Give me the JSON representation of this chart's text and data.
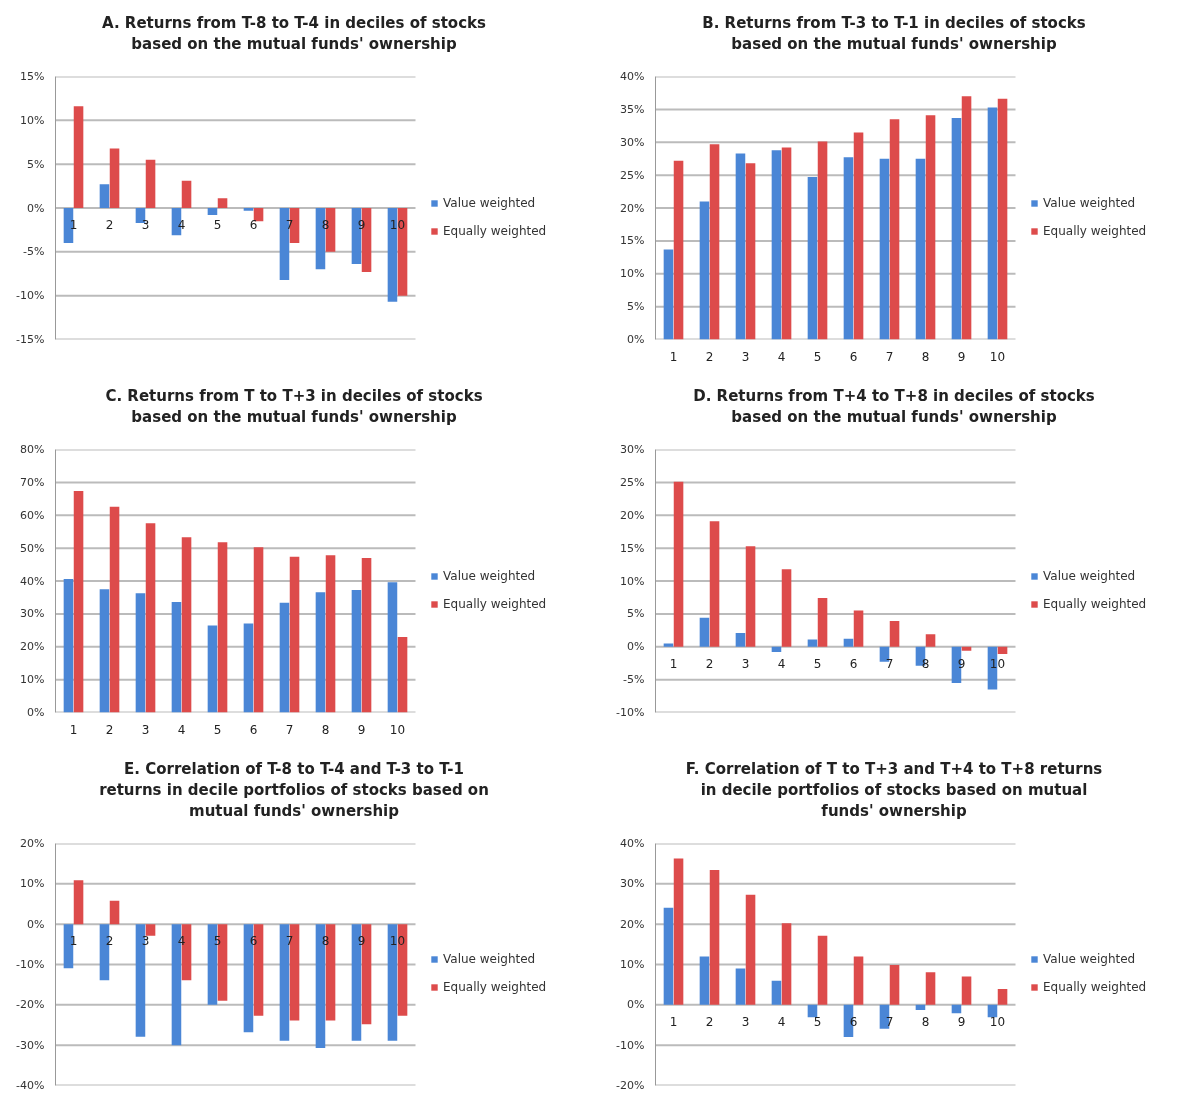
{
  "chart_data": [
    {
      "type": "bar",
      "title": "A. Returns from T-8 to T-4 in deciles of stocks\nbased on the mutual funds' ownership",
      "categories": [
        "1",
        "2",
        "3",
        "4",
        "5",
        "6",
        "7",
        "8",
        "9",
        "10"
      ],
      "series": [
        {
          "name": "Value weighted",
          "color": "#4a86d6",
          "values": [
            -4.0,
            2.7,
            -1.7,
            -3.1,
            -0.8,
            -0.3,
            -8.2,
            -7.0,
            -6.4,
            -10.7
          ]
        },
        {
          "name": "Equally weighted",
          "color": "#dd4b4b",
          "values": [
            11.6,
            6.8,
            5.5,
            3.1,
            1.1,
            -1.5,
            -4.0,
            -5.0,
            -7.3,
            -10.0
          ]
        }
      ],
      "ylim": [
        -15,
        15
      ],
      "yticks": [
        {
          "value": -15,
          "label": "-15%"
        },
        {
          "value": -10,
          "label": "-10%"
        },
        {
          "value": -5,
          "label": "-5%"
        },
        {
          "value": 0,
          "label": "0%"
        },
        {
          "value": 5,
          "label": "5%"
        },
        {
          "value": 10,
          "label": "10%"
        },
        {
          "value": 15,
          "label": "15%"
        }
      ],
      "grid": "y",
      "legend": "right"
    },
    {
      "type": "bar",
      "title": "B. Returns from T-3 to T-1 in deciles of stocks\nbased on the mutual funds' ownership",
      "categories": [
        "1",
        "2",
        "3",
        "4",
        "5",
        "6",
        "7",
        "8",
        "9",
        "10"
      ],
      "series": [
        {
          "name": "Value weighted",
          "color": "#4a86d6",
          "values": [
            13.7,
            21.0,
            28.3,
            28.8,
            24.7,
            27.7,
            27.5,
            27.5,
            33.7,
            35.3
          ]
        },
        {
          "name": "Equally weighted",
          "color": "#dd4b4b",
          "values": [
            27.2,
            29.7,
            26.8,
            29.2,
            30.1,
            31.5,
            33.5,
            34.1,
            37.0,
            36.6
          ]
        }
      ],
      "ylim": [
        0,
        40
      ],
      "yticks": [
        {
          "value": 0,
          "label": "0%"
        },
        {
          "value": 5,
          "label": "5%"
        },
        {
          "value": 10,
          "label": "10%"
        },
        {
          "value": 15,
          "label": "15%"
        },
        {
          "value": 20,
          "label": "20%"
        },
        {
          "value": 25,
          "label": "25%"
        },
        {
          "value": 30,
          "label": "30%"
        },
        {
          "value": 35,
          "label": "35%"
        },
        {
          "value": 40,
          "label": "40%"
        }
      ],
      "grid": "y",
      "legend": "right"
    },
    {
      "type": "bar",
      "title": "C. Returns from T to T+3 in deciles of stocks\nbased on the mutual funds' ownership",
      "categories": [
        "1",
        "2",
        "3",
        "4",
        "5",
        "6",
        "7",
        "8",
        "9",
        "10"
      ],
      "series": [
        {
          "name": "Value weighted",
          "color": "#4a86d6",
          "values": [
            40.6,
            37.5,
            36.3,
            33.6,
            26.5,
            27.1,
            33.4,
            36.6,
            37.3,
            39.6
          ]
        },
        {
          "name": "Equally weighted",
          "color": "#dd4b4b",
          "values": [
            67.4,
            62.6,
            57.6,
            53.3,
            51.8,
            50.3,
            47.4,
            47.8,
            47.0,
            23.0
          ]
        }
      ],
      "ylim": [
        0,
        80
      ],
      "yticks": [
        {
          "value": 0,
          "label": "0%"
        },
        {
          "value": 10,
          "label": "10%"
        },
        {
          "value": 20,
          "label": "20%"
        },
        {
          "value": 30,
          "label": "30%"
        },
        {
          "value": 40,
          "label": "40%"
        },
        {
          "value": 50,
          "label": "50%"
        },
        {
          "value": 60,
          "label": "60%"
        },
        {
          "value": 70,
          "label": "70%"
        },
        {
          "value": 80,
          "label": "80%"
        }
      ],
      "grid": "y",
      "legend": "right"
    },
    {
      "type": "bar",
      "title": "D. Returns from T+4 to T+8 in deciles of stocks\nbased on the mutual funds' ownership",
      "categories": [
        "1",
        "2",
        "3",
        "4",
        "5",
        "6",
        "7",
        "8",
        "9",
        "10"
      ],
      "series": [
        {
          "name": "Value weighted",
          "color": "#4a86d6",
          "values": [
            0.5,
            4.4,
            2.1,
            -0.8,
            1.1,
            1.2,
            -2.3,
            -2.9,
            -5.5,
            -6.5
          ]
        },
        {
          "name": "Equally weighted",
          "color": "#dd4b4b",
          "values": [
            25.1,
            19.1,
            15.3,
            11.8,
            7.4,
            5.5,
            3.9,
            1.9,
            -0.6,
            -1.1
          ]
        }
      ],
      "ylim": [
        -10,
        30
      ],
      "yticks": [
        {
          "value": -10,
          "label": "-10%"
        },
        {
          "value": -5,
          "label": "-5%"
        },
        {
          "value": 0,
          "label": "0%"
        },
        {
          "value": 5,
          "label": "5%"
        },
        {
          "value": 10,
          "label": "10%"
        },
        {
          "value": 15,
          "label": "15%"
        },
        {
          "value": 20,
          "label": "20%"
        },
        {
          "value": 25,
          "label": "25%"
        },
        {
          "value": 30,
          "label": "30%"
        }
      ],
      "grid": "y",
      "legend": "right"
    },
    {
      "type": "bar",
      "title": "E. Correlation of T-8 to T-4 and T-3 to T-1\nreturns in decile portfolios of stocks based on\nmutual funds' ownership",
      "categories": [
        "1",
        "2",
        "3",
        "4",
        "5",
        "6",
        "7",
        "8",
        "9",
        "10"
      ],
      "series": [
        {
          "name": "Value weighted",
          "color": "#4a86d6",
          "values": [
            -10.9,
            -13.9,
            -27.9,
            -30.0,
            -20.0,
            -26.8,
            -28.9,
            -30.7,
            -28.9,
            -28.9
          ]
        },
        {
          "name": "Equally weighted",
          "color": "#dd4b4b",
          "values": [
            10.9,
            5.8,
            -2.9,
            -13.9,
            -19.0,
            -22.7,
            -23.9,
            -23.9,
            -24.8,
            -22.7
          ]
        }
      ],
      "ylim": [
        -40,
        20
      ],
      "yticks": [
        {
          "value": -40,
          "label": "-40%"
        },
        {
          "value": -30,
          "label": "-30%"
        },
        {
          "value": -20,
          "label": "-20%"
        },
        {
          "value": -10,
          "label": "-10%"
        },
        {
          "value": 0,
          "label": "0%"
        },
        {
          "value": 10,
          "label": "10%"
        },
        {
          "value": 20,
          "label": "20%"
        }
      ],
      "grid": "y",
      "legend": "right"
    },
    {
      "type": "bar",
      "title": "F. Correlation of T to T+3 and T+4 to T+8 returns\nin decile portfolios of stocks based on mutual\nfunds' ownership",
      "categories": [
        "1",
        "2",
        "3",
        "4",
        "5",
        "6",
        "7",
        "8",
        "9",
        "10"
      ],
      "series": [
        {
          "name": "Value weighted",
          "color": "#4a86d6",
          "values": [
            24.1,
            12.0,
            9.0,
            6.0,
            -3.1,
            -8.0,
            -5.9,
            -1.3,
            -2.1,
            -3.1
          ]
        },
        {
          "name": "Equally weighted",
          "color": "#dd4b4b",
          "values": [
            36.3,
            33.4,
            27.3,
            20.2,
            17.1,
            12.0,
            9.9,
            8.1,
            7.0,
            3.9
          ]
        }
      ],
      "ylim": [
        -20,
        40
      ],
      "yticks": [
        {
          "value": -20,
          "label": "-20%"
        },
        {
          "value": -10,
          "label": "-10%"
        },
        {
          "value": 0,
          "label": "0%"
        },
        {
          "value": 10,
          "label": "10%"
        },
        {
          "value": 20,
          "label": "20%"
        },
        {
          "value": 30,
          "label": "30%"
        },
        {
          "value": 40,
          "label": "40%"
        }
      ],
      "grid": "y",
      "legend": "right"
    }
  ]
}
